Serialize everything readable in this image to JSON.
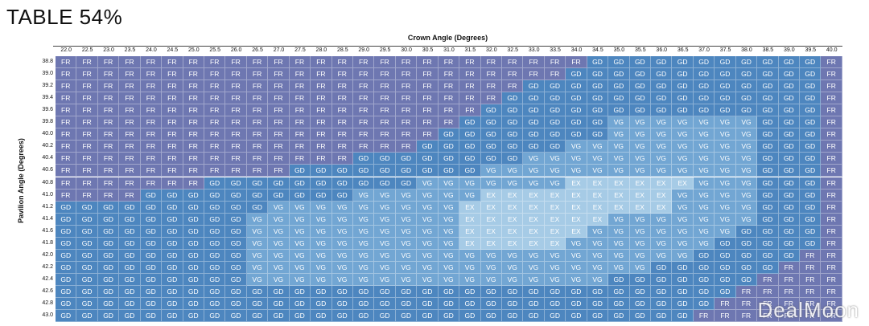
{
  "title": "TABLE 54%",
  "watermark": "DealMoon",
  "colors": {
    "FR": "#6e77b1",
    "GD": "#4d86bf",
    "VG": "#72a6d3",
    "EX": "#a6cbe6"
  },
  "chart_data": {
    "type": "table",
    "title": "TABLE 54%",
    "xlabel": "Crown Angle (Degrees)",
    "ylabel": "Pavilion Angle (Degrees)",
    "columns": [
      "22.0",
      "22.5",
      "23.0",
      "23.5",
      "24.0",
      "24.5",
      "25.0",
      "25.5",
      "26.0",
      "26.5",
      "27.0",
      "27.5",
      "28.0",
      "28.5",
      "29.0",
      "29.5",
      "30.0",
      "30.5",
      "31.0",
      "31.5",
      "32.0",
      "32.5",
      "33.0",
      "33.5",
      "34.0",
      "34.5",
      "35.0",
      "35.5",
      "36.0",
      "36.5",
      "37.0",
      "37.5",
      "38.0",
      "38.5",
      "39.0",
      "39.5",
      "40.0"
    ],
    "rows": [
      "38.8",
      "39.0",
      "39.2",
      "39.4",
      "39.6",
      "39.8",
      "40.0",
      "40.2",
      "40.4",
      "40.6",
      "40.8",
      "41.0",
      "41.2",
      "41.4",
      "41.6",
      "41.8",
      "42.0",
      "42.2",
      "42.4",
      "42.6",
      "42.8",
      "43.0"
    ],
    "cells": [
      [
        "FR",
        "FR",
        "FR",
        "FR",
        "FR",
        "FR",
        "FR",
        "FR",
        "FR",
        "FR",
        "FR",
        "FR",
        "FR",
        "FR",
        "FR",
        "FR",
        "FR",
        "FR",
        "FR",
        "FR",
        "FR",
        "FR",
        "FR",
        "FR",
        "FR",
        "GD",
        "GD",
        "GD",
        "GD",
        "GD",
        "GD",
        "GD",
        "GD",
        "GD",
        "GD",
        "GD",
        "FR"
      ],
      [
        "FR",
        "FR",
        "FR",
        "FR",
        "FR",
        "FR",
        "FR",
        "FR",
        "FR",
        "FR",
        "FR",
        "FR",
        "FR",
        "FR",
        "FR",
        "FR",
        "FR",
        "FR",
        "FR",
        "FR",
        "FR",
        "FR",
        "FR",
        "FR",
        "GD",
        "GD",
        "GD",
        "GD",
        "GD",
        "GD",
        "GD",
        "GD",
        "GD",
        "GD",
        "GD",
        "GD",
        "FR"
      ],
      [
        "FR",
        "FR",
        "FR",
        "FR",
        "FR",
        "FR",
        "FR",
        "FR",
        "FR",
        "FR",
        "FR",
        "FR",
        "FR",
        "FR",
        "FR",
        "FR",
        "FR",
        "FR",
        "FR",
        "FR",
        "FR",
        "FR",
        "GD",
        "GD",
        "GD",
        "GD",
        "GD",
        "GD",
        "GD",
        "GD",
        "GD",
        "GD",
        "GD",
        "GD",
        "GD",
        "GD",
        "FR"
      ],
      [
        "FR",
        "FR",
        "FR",
        "FR",
        "FR",
        "FR",
        "FR",
        "FR",
        "FR",
        "FR",
        "FR",
        "FR",
        "FR",
        "FR",
        "FR",
        "FR",
        "FR",
        "FR",
        "FR",
        "FR",
        "FR",
        "GD",
        "GD",
        "GD",
        "GD",
        "GD",
        "GD",
        "GD",
        "GD",
        "GD",
        "GD",
        "GD",
        "GD",
        "GD",
        "GD",
        "GD",
        "FR"
      ],
      [
        "FR",
        "FR",
        "FR",
        "FR",
        "FR",
        "FR",
        "FR",
        "FR",
        "FR",
        "FR",
        "FR",
        "FR",
        "FR",
        "FR",
        "FR",
        "FR",
        "FR",
        "FR",
        "FR",
        "FR",
        "GD",
        "GD",
        "GD",
        "GD",
        "GD",
        "GD",
        "GD",
        "GD",
        "GD",
        "GD",
        "GD",
        "GD",
        "GD",
        "GD",
        "GD",
        "GD",
        "FR"
      ],
      [
        "FR",
        "FR",
        "FR",
        "FR",
        "FR",
        "FR",
        "FR",
        "FR",
        "FR",
        "FR",
        "FR",
        "FR",
        "FR",
        "FR",
        "FR",
        "FR",
        "FR",
        "FR",
        "FR",
        "GD",
        "GD",
        "GD",
        "GD",
        "GD",
        "GD",
        "GD",
        "VG",
        "VG",
        "VG",
        "VG",
        "VG",
        "VG",
        "VG",
        "GD",
        "GD",
        "GD",
        "FR"
      ],
      [
        "FR",
        "FR",
        "FR",
        "FR",
        "FR",
        "FR",
        "FR",
        "FR",
        "FR",
        "FR",
        "FR",
        "FR",
        "FR",
        "FR",
        "FR",
        "FR",
        "FR",
        "FR",
        "GD",
        "GD",
        "GD",
        "GD",
        "GD",
        "GD",
        "GD",
        "GD",
        "VG",
        "VG",
        "VG",
        "VG",
        "VG",
        "VG",
        "VG",
        "GD",
        "GD",
        "GD",
        "FR"
      ],
      [
        "FR",
        "FR",
        "FR",
        "FR",
        "FR",
        "FR",
        "FR",
        "FR",
        "FR",
        "FR",
        "FR",
        "FR",
        "FR",
        "FR",
        "FR",
        "FR",
        "FR",
        "GD",
        "GD",
        "GD",
        "GD",
        "GD",
        "GD",
        "GD",
        "VG",
        "VG",
        "VG",
        "VG",
        "VG",
        "VG",
        "VG",
        "VG",
        "VG",
        "GD",
        "GD",
        "GD",
        "FR"
      ],
      [
        "FR",
        "FR",
        "FR",
        "FR",
        "FR",
        "FR",
        "FR",
        "FR",
        "FR",
        "FR",
        "FR",
        "FR",
        "FR",
        "FR",
        "GD",
        "GD",
        "GD",
        "GD",
        "GD",
        "GD",
        "GD",
        "GD",
        "VG",
        "VG",
        "VG",
        "VG",
        "VG",
        "VG",
        "VG",
        "VG",
        "VG",
        "VG",
        "VG",
        "GD",
        "GD",
        "GD",
        "FR"
      ],
      [
        "FR",
        "FR",
        "FR",
        "FR",
        "FR",
        "FR",
        "FR",
        "FR",
        "FR",
        "FR",
        "FR",
        "GD",
        "GD",
        "GD",
        "GD",
        "GD",
        "GD",
        "GD",
        "GD",
        "GD",
        "VG",
        "VG",
        "VG",
        "VG",
        "VG",
        "VG",
        "VG",
        "VG",
        "VG",
        "VG",
        "VG",
        "VG",
        "VG",
        "GD",
        "GD",
        "GD",
        "FR"
      ],
      [
        "FR",
        "FR",
        "FR",
        "FR",
        "FR",
        "FR",
        "FR",
        "GD",
        "GD",
        "GD",
        "GD",
        "GD",
        "GD",
        "GD",
        "GD",
        "GD",
        "GD",
        "VG",
        "VG",
        "VG",
        "VG",
        "VG",
        "VG",
        "VG",
        "EX",
        "EX",
        "EX",
        "EX",
        "EX",
        "EX",
        "VG",
        "VG",
        "VG",
        "GD",
        "GD",
        "GD",
        "FR"
      ],
      [
        "FR",
        "FR",
        "FR",
        "FR",
        "GD",
        "GD",
        "GD",
        "GD",
        "GD",
        "GD",
        "GD",
        "GD",
        "GD",
        "GD",
        "VG",
        "VG",
        "VG",
        "VG",
        "VG",
        "VG",
        "EX",
        "EX",
        "EX",
        "EX",
        "EX",
        "EX",
        "EX",
        "EX",
        "EX",
        "VG",
        "VG",
        "VG",
        "VG",
        "GD",
        "GD",
        "GD",
        "FR"
      ],
      [
        "GD",
        "GD",
        "GD",
        "GD",
        "GD",
        "GD",
        "GD",
        "GD",
        "GD",
        "GD",
        "VG",
        "VG",
        "VG",
        "VG",
        "VG",
        "VG",
        "VG",
        "VG",
        "VG",
        "EX",
        "EX",
        "EX",
        "EX",
        "EX",
        "EX",
        "EX",
        "EX",
        "EX",
        "EX",
        "VG",
        "VG",
        "VG",
        "VG",
        "GD",
        "GD",
        "GD",
        "FR"
      ],
      [
        "GD",
        "GD",
        "GD",
        "GD",
        "GD",
        "GD",
        "GD",
        "GD",
        "GD",
        "VG",
        "VG",
        "VG",
        "VG",
        "VG",
        "VG",
        "VG",
        "VG",
        "VG",
        "VG",
        "EX",
        "EX",
        "EX",
        "EX",
        "EX",
        "EX",
        "EX",
        "VG",
        "VG",
        "VG",
        "VG",
        "VG",
        "VG",
        "VG",
        "GD",
        "GD",
        "GD",
        "FR"
      ],
      [
        "GD",
        "GD",
        "GD",
        "GD",
        "GD",
        "GD",
        "GD",
        "GD",
        "GD",
        "VG",
        "VG",
        "VG",
        "VG",
        "VG",
        "VG",
        "VG",
        "VG",
        "VG",
        "VG",
        "EX",
        "EX",
        "EX",
        "EX",
        "EX",
        "EX",
        "VG",
        "VG",
        "VG",
        "VG",
        "VG",
        "VG",
        "VG",
        "GD",
        "GD",
        "GD",
        "GD",
        "FR"
      ],
      [
        "GD",
        "GD",
        "GD",
        "GD",
        "GD",
        "GD",
        "GD",
        "GD",
        "GD",
        "VG",
        "VG",
        "VG",
        "VG",
        "VG",
        "VG",
        "VG",
        "VG",
        "VG",
        "VG",
        "EX",
        "EX",
        "EX",
        "EX",
        "EX",
        "VG",
        "VG",
        "VG",
        "VG",
        "VG",
        "VG",
        "VG",
        "GD",
        "GD",
        "GD",
        "GD",
        "GD",
        "FR"
      ],
      [
        "GD",
        "GD",
        "GD",
        "GD",
        "GD",
        "GD",
        "GD",
        "GD",
        "GD",
        "VG",
        "VG",
        "VG",
        "VG",
        "VG",
        "VG",
        "VG",
        "VG",
        "VG",
        "VG",
        "VG",
        "VG",
        "VG",
        "VG",
        "VG",
        "VG",
        "VG",
        "VG",
        "VG",
        "VG",
        "VG",
        "GD",
        "GD",
        "GD",
        "GD",
        "GD",
        "FR",
        "FR"
      ],
      [
        "GD",
        "GD",
        "GD",
        "GD",
        "GD",
        "GD",
        "GD",
        "GD",
        "GD",
        "VG",
        "VG",
        "VG",
        "VG",
        "VG",
        "VG",
        "VG",
        "VG",
        "VG",
        "VG",
        "VG",
        "VG",
        "VG",
        "VG",
        "VG",
        "VG",
        "VG",
        "VG",
        "VG",
        "GD",
        "GD",
        "GD",
        "GD",
        "GD",
        "GD",
        "FR",
        "FR",
        "FR"
      ],
      [
        "GD",
        "GD",
        "GD",
        "GD",
        "GD",
        "GD",
        "GD",
        "GD",
        "GD",
        "VG",
        "VG",
        "VG",
        "VG",
        "VG",
        "VG",
        "VG",
        "VG",
        "VG",
        "VG",
        "VG",
        "VG",
        "VG",
        "VG",
        "VG",
        "VG",
        "VG",
        "GD",
        "GD",
        "GD",
        "GD",
        "GD",
        "GD",
        "GD",
        "FR",
        "FR",
        "FR",
        "FR"
      ],
      [
        "GD",
        "GD",
        "GD",
        "GD",
        "GD",
        "GD",
        "GD",
        "GD",
        "GD",
        "GD",
        "GD",
        "GD",
        "GD",
        "GD",
        "GD",
        "GD",
        "GD",
        "GD",
        "GD",
        "GD",
        "GD",
        "GD",
        "GD",
        "GD",
        "GD",
        "GD",
        "GD",
        "GD",
        "GD",
        "GD",
        "GD",
        "GD",
        "FR",
        "FR",
        "FR",
        "FR",
        "FR"
      ],
      [
        "GD",
        "GD",
        "GD",
        "GD",
        "GD",
        "GD",
        "GD",
        "GD",
        "GD",
        "GD",
        "GD",
        "GD",
        "GD",
        "GD",
        "GD",
        "GD",
        "GD",
        "GD",
        "GD",
        "GD",
        "GD",
        "GD",
        "GD",
        "GD",
        "GD",
        "GD",
        "GD",
        "GD",
        "GD",
        "GD",
        "GD",
        "FR",
        "FR",
        "FR",
        "FR",
        "FR",
        "FR"
      ],
      [
        "GD",
        "GD",
        "GD",
        "GD",
        "GD",
        "GD",
        "GD",
        "GD",
        "GD",
        "GD",
        "GD",
        "GD",
        "GD",
        "GD",
        "GD",
        "GD",
        "GD",
        "GD",
        "GD",
        "GD",
        "GD",
        "GD",
        "GD",
        "GD",
        "GD",
        "GD",
        "GD",
        "GD",
        "GD",
        "GD",
        "FR",
        "FR",
        "FR",
        "FR",
        "FR",
        "FR",
        "FR"
      ]
    ]
  }
}
